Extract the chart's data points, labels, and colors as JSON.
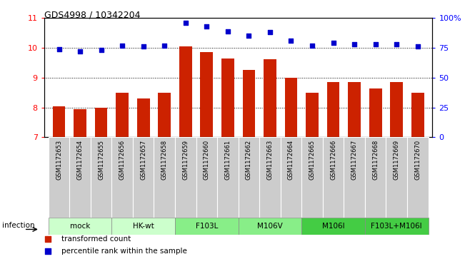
{
  "title": "GDS4998 / 10342204",
  "samples": [
    "GSM1172653",
    "GSM1172654",
    "GSM1172655",
    "GSM1172656",
    "GSM1172657",
    "GSM1172658",
    "GSM1172659",
    "GSM1172660",
    "GSM1172661",
    "GSM1172662",
    "GSM1172663",
    "GSM1172664",
    "GSM1172665",
    "GSM1172666",
    "GSM1172667",
    "GSM1172668",
    "GSM1172669",
    "GSM1172670"
  ],
  "bar_values": [
    8.05,
    7.95,
    8.0,
    8.5,
    8.3,
    8.5,
    10.05,
    9.85,
    9.65,
    9.25,
    9.62,
    9.0,
    8.5,
    8.85,
    8.85,
    8.65,
    8.85,
    8.5
  ],
  "dot_values": [
    74,
    72,
    73,
    77,
    76,
    77,
    96,
    93,
    89,
    85,
    88,
    81,
    77,
    79,
    78,
    78,
    78,
    76
  ],
  "groups": [
    {
      "label": "mock",
      "color": "#ccffcc",
      "start": 0,
      "end": 2
    },
    {
      "label": "HK-wt",
      "color": "#ccffcc",
      "start": 3,
      "end": 5
    },
    {
      "label": "F103L",
      "color": "#88ee88",
      "start": 6,
      "end": 8
    },
    {
      "label": "M106V",
      "color": "#88ee88",
      "start": 9,
      "end": 11
    },
    {
      "label": "M106I",
      "color": "#44cc44",
      "start": 12,
      "end": 14
    },
    {
      "label": "F103L+M106I",
      "color": "#44cc44",
      "start": 15,
      "end": 17
    }
  ],
  "ylim_left": [
    7,
    11
  ],
  "ylim_right": [
    0,
    100
  ],
  "yticks_left": [
    7,
    8,
    9,
    10,
    11
  ],
  "yticks_right": [
    0,
    25,
    50,
    75,
    100
  ],
  "ytick_right_labels": [
    "0",
    "25",
    "50",
    "75",
    "100%"
  ],
  "bar_color": "#cc2200",
  "dot_color": "#0000cc",
  "sample_box_color": "#cccccc",
  "infection_label": "infection",
  "legend_bar": "transformed count",
  "legend_dot": "percentile rank within the sample"
}
